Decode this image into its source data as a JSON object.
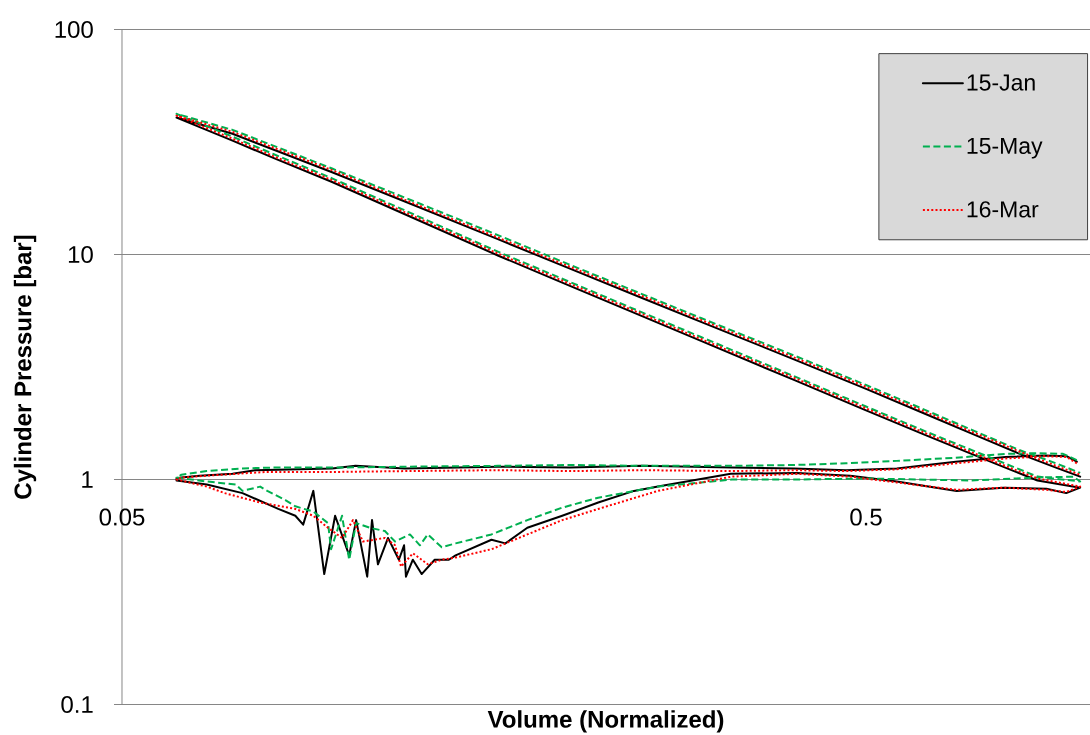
{
  "chart_data": {
    "type": "line",
    "xlabel": "Volume (Normalized)",
    "ylabel": "Cylinder Pressure [bar]",
    "log": "xy",
    "xlim": [
      0.05,
      1
    ],
    "ylim": [
      0.1,
      100
    ],
    "xticks": [
      0.05,
      0.5
    ],
    "yticks": [
      0.1,
      1,
      10,
      100
    ],
    "grid": "y",
    "legend": "top right",
    "series": [
      {
        "name": "15-Jan",
        "color": "#000000",
        "line_style": "solid",
        "x": [
          0.96,
          0.93,
          0.87,
          0.77,
          0.66,
          0.55,
          0.47,
          0.4,
          0.33,
          0.25,
          0.2,
          0.16,
          0.12,
          0.103,
          0.0958,
          0.0865,
          0.0755,
          0.0704,
          0.0636,
          0.0601,
          0.0592,
          0.0592,
          0.065,
          0.0726,
          0.0811,
          0.0855,
          0.0876,
          0.0904,
          0.0935,
          0.0967,
          0.101,
          0.1032,
          0.1068,
          0.1084,
          0.1104,
          0.1139,
          0.1178,
          0.1197,
          0.1204,
          0.123,
          0.1264,
          0.1316,
          0.1375,
          0.1404,
          0.1569,
          0.1638,
          0.1753,
          0.1953,
          0.2183,
          0.2438,
          0.2626,
          0.329,
          0.404,
          0.476,
          0.55,
          0.662,
          0.765,
          0.874,
          0.929,
          0.97,
          0.85,
          0.749,
          0.6,
          0.5,
          0.4,
          0.3,
          0.25,
          0.2,
          0.16,
          0.12,
          0.0958,
          0.08,
          0.0704,
          0.0592,
          0.0704,
          0.08,
          0.0958,
          0.12,
          0.16,
          0.2,
          0.25,
          0.3,
          0.4,
          0.5,
          0.6,
          0.7,
          0.8,
          0.9,
          0.97
        ],
        "values": [
          1.2,
          1.27,
          1.28,
          1.26,
          1.2,
          1.12,
          1.1,
          1.12,
          1.13,
          1.15,
          1.13,
          1.14,
          1.12,
          1.15,
          1.12,
          1.11,
          1.1,
          1.06,
          1.04,
          1.02,
          1.01,
          0.99,
          0.95,
          0.87,
          0.74,
          0.69,
          0.63,
          0.89,
          0.38,
          0.69,
          0.46,
          0.66,
          0.37,
          0.66,
          0.42,
          0.55,
          0.44,
          0.51,
          0.37,
          0.44,
          0.38,
          0.44,
          0.44,
          0.46,
          0.54,
          0.52,
          0.61,
          0.69,
          0.79,
          0.89,
          0.93,
          1.06,
          1.07,
          1.04,
          0.98,
          0.89,
          0.92,
          0.91,
          0.87,
          0.92,
          0.99,
          1.17,
          1.58,
          2.03,
          2.77,
          4.13,
          5.32,
          7.26,
          9.9,
          15.1,
          21.0,
          26.8,
          32.1,
          40.6,
          34.4,
          29.2,
          23.2,
          17.2,
          11.7,
          8.65,
          6.41,
          5.02,
          3.42,
          2.53,
          1.96,
          1.58,
          1.31,
          1.13,
          1.03
        ]
      },
      {
        "name": "15-May",
        "color": "#00b050",
        "line_style": "dashed",
        "x": [
          0.96,
          0.92,
          0.85,
          0.77,
          0.66,
          0.55,
          0.47,
          0.4,
          0.33,
          0.25,
          0.2,
          0.16,
          0.12,
          0.0958,
          0.08,
          0.0726,
          0.065,
          0.0601,
          0.0592,
          0.065,
          0.0711,
          0.0726,
          0.0767,
          0.0784,
          0.0829,
          0.0855,
          0.0904,
          0.0946,
          0.0955,
          0.0988,
          0.101,
          0.1032,
          0.1077,
          0.1128,
          0.1164,
          0.1219,
          0.1257,
          0.1288,
          0.1345,
          0.1404,
          0.1569,
          0.1753,
          0.1953,
          0.2183,
          0.2626,
          0.3,
          0.33,
          0.4,
          0.505,
          0.69,
          0.85,
          0.95,
          0.97,
          0.85,
          0.749,
          0.6,
          0.5,
          0.4,
          0.3,
          0.25,
          0.2,
          0.16,
          0.12,
          0.0958,
          0.08,
          0.0704,
          0.0592,
          0.0704,
          0.08,
          0.0958,
          0.12,
          0.16,
          0.2,
          0.25,
          0.3,
          0.4,
          0.5,
          0.6,
          0.7,
          0.8,
          0.9,
          0.97
        ],
        "values": [
          1.22,
          1.3,
          1.31,
          1.3,
          1.25,
          1.21,
          1.18,
          1.16,
          1.15,
          1.15,
          1.16,
          1.15,
          1.14,
          1.13,
          1.13,
          1.12,
          1.09,
          1.05,
          1.02,
          0.98,
          0.95,
          0.89,
          0.93,
          0.89,
          0.81,
          0.76,
          0.72,
          0.64,
          0.49,
          0.69,
          0.44,
          0.64,
          0.61,
          0.59,
          0.53,
          0.57,
          0.51,
          0.57,
          0.5,
          0.52,
          0.57,
          0.66,
          0.75,
          0.83,
          0.93,
          0.97,
          1.0,
          1.0,
          1.01,
          0.99,
          1.02,
          1.03,
          0.98,
          1.03,
          1.22,
          1.64,
          2.11,
          2.88,
          4.3,
          5.53,
          7.55,
          10.3,
          15.7,
          21.8,
          27.9,
          33.4,
          42.2,
          35.8,
          30.4,
          24.1,
          17.9,
          12.2,
          9.0,
          6.67,
          5.22,
          3.56,
          2.63,
          2.04,
          1.64,
          1.36,
          1.18,
          1.07
        ]
      },
      {
        "name": "16-Mar",
        "color": "#ff0000",
        "line_style": "dotted",
        "x": [
          0.96,
          0.93,
          0.87,
          0.77,
          0.66,
          0.55,
          0.47,
          0.4,
          0.33,
          0.25,
          0.2,
          0.16,
          0.12,
          0.0958,
          0.078,
          0.065,
          0.0601,
          0.0592,
          0.065,
          0.0687,
          0.0767,
          0.0855,
          0.0904,
          0.0946,
          0.0988,
          0.1022,
          0.1054,
          0.1128,
          0.1164,
          0.1186,
          0.123,
          0.1288,
          0.1345,
          0.1404,
          0.1569,
          0.1753,
          0.1953,
          0.2183,
          0.2626,
          0.3,
          0.33,
          0.404,
          0.476,
          0.55,
          0.662,
          0.765,
          0.874,
          0.929,
          0.97,
          0.85,
          0.749,
          0.6,
          0.5,
          0.4,
          0.3,
          0.25,
          0.2,
          0.16,
          0.12,
          0.0958,
          0.08,
          0.0704,
          0.0592,
          0.0704,
          0.08,
          0.0958,
          0.12,
          0.16,
          0.2,
          0.25,
          0.3,
          0.4,
          0.5,
          0.6,
          0.7,
          0.8,
          0.9,
          0.97
        ],
        "values": [
          1.18,
          1.26,
          1.27,
          1.24,
          1.18,
          1.11,
          1.09,
          1.1,
          1.09,
          1.1,
          1.09,
          1.1,
          1.09,
          1.08,
          1.08,
          1.04,
          1.02,
          1.0,
          0.93,
          0.87,
          0.79,
          0.74,
          0.69,
          0.61,
          0.55,
          0.66,
          0.53,
          0.55,
          0.51,
          0.41,
          0.47,
          0.42,
          0.44,
          0.45,
          0.49,
          0.57,
          0.66,
          0.74,
          0.89,
          0.97,
          1.03,
          1.06,
          1.03,
          0.97,
          0.9,
          0.92,
          0.9,
          0.88,
          0.93,
          1.01,
          1.19,
          1.61,
          2.07,
          2.83,
          4.21,
          5.43,
          7.41,
          10.1,
          15.4,
          21.4,
          27.3,
          32.7,
          41.4,
          35.1,
          29.8,
          23.7,
          17.5,
          11.9,
          8.82,
          6.54,
          5.12,
          3.49,
          2.58,
          2.0,
          1.61,
          1.34,
          1.15,
          1.05
        ]
      }
    ]
  }
}
